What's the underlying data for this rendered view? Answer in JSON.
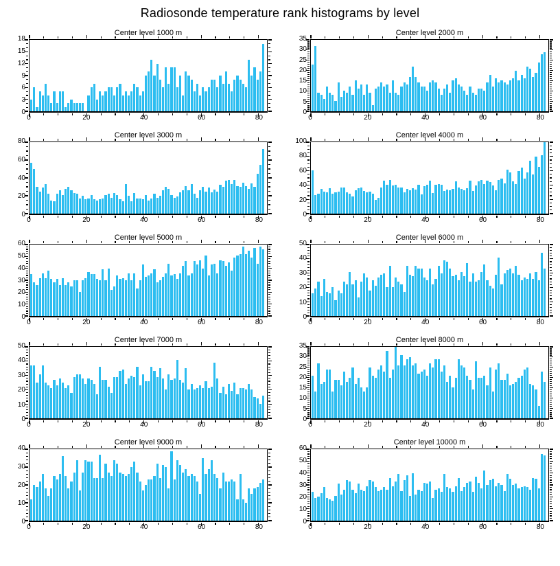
{
  "title": "Radiosonde temperature rank histograms by level",
  "colors": {
    "bar": "#2CBDF0",
    "axis": "#000000",
    "background": "#ffffff"
  },
  "chart_data": [
    {
      "type": "bar",
      "title": "Center level 1000 m",
      "ylim": [
        0,
        18
      ],
      "ytick_step": 3,
      "yminor_step": 1,
      "xlim": [
        0,
        83
      ],
      "xticks": [
        0,
        20,
        40,
        60,
        80
      ],
      "xminor_step": 5,
      "values": [
        3,
        6,
        1,
        5,
        4,
        7,
        4,
        2,
        5,
        2,
        5,
        5,
        1,
        2,
        3,
        2,
        2,
        2,
        2,
        0,
        4,
        6,
        7,
        3,
        5,
        4,
        5,
        6,
        6,
        4,
        6,
        7,
        4,
        5,
        4,
        5,
        7,
        6,
        4,
        5,
        9,
        10,
        13,
        9,
        12,
        8,
        6,
        11,
        7,
        11,
        11,
        6,
        9,
        4,
        10,
        9,
        8,
        5,
        7,
        4,
        6,
        5,
        6,
        8,
        8,
        6,
        9,
        7,
        10,
        7,
        5,
        8,
        9,
        8,
        7,
        6,
        13,
        9,
        11,
        8,
        10,
        17
      ]
    },
    {
      "type": "bar",
      "title": "Center level 2000 m",
      "ylim": [
        0,
        35
      ],
      "ytick_step": 5,
      "yminor_step": 1,
      "xlim": [
        0,
        83
      ],
      "xticks": [
        0,
        20,
        40,
        60,
        80
      ],
      "xminor_step": 5,
      "values": [
        23,
        32,
        9,
        8,
        6,
        12,
        9,
        8,
        5,
        14,
        7,
        10,
        9,
        12,
        8,
        15,
        11,
        13,
        8,
        13,
        9,
        3,
        11,
        12,
        14,
        12,
        13,
        9,
        15,
        9,
        8,
        12,
        14,
        13,
        17,
        22,
        17,
        14,
        12,
        12,
        10,
        14,
        15,
        14,
        11,
        8,
        11,
        13,
        9,
        15,
        16,
        13,
        12,
        10,
        8,
        12,
        9,
        8,
        11,
        11,
        10,
        14,
        18,
        12,
        16,
        14,
        15,
        14,
        13,
        15,
        16,
        20,
        15,
        18,
        16,
        22,
        21,
        17,
        19,
        24,
        28,
        29
      ]
    },
    {
      "type": "bar",
      "title": "Center level 3000 m",
      "ylim": [
        0,
        80
      ],
      "ytick_step": 20,
      "yminor_step": 5,
      "xlim": [
        0,
        83
      ],
      "xticks": [
        0,
        20,
        40,
        60,
        80
      ],
      "xminor_step": 5,
      "values": [
        57,
        50,
        30,
        25,
        29,
        33,
        22,
        15,
        14,
        22,
        26,
        21,
        28,
        30,
        26,
        23,
        22,
        17,
        20,
        16,
        17,
        21,
        16,
        15,
        16,
        17,
        21,
        22,
        18,
        23,
        21,
        16,
        14,
        33,
        20,
        14,
        23,
        17,
        17,
        16,
        21,
        15,
        17,
        22,
        18,
        20,
        26,
        30,
        28,
        21,
        18,
        19,
        24,
        26,
        31,
        26,
        33,
        22,
        18,
        26,
        30,
        25,
        29,
        24,
        27,
        25,
        32,
        30,
        37,
        38,
        33,
        38,
        31,
        30,
        35,
        31,
        28,
        34,
        30,
        45,
        55,
        72
      ]
    },
    {
      "type": "bar",
      "title": "Center level 4000 m",
      "ylim": [
        0,
        100
      ],
      "ytick_step": 20,
      "yminor_step": 5,
      "xlim": [
        0,
        83
      ],
      "xticks": [
        0,
        20,
        40,
        60,
        80
      ],
      "xminor_step": 5,
      "values": [
        61,
        26,
        28,
        35,
        31,
        30,
        36,
        28,
        30,
        31,
        37,
        37,
        30,
        28,
        24,
        33,
        36,
        37,
        32,
        30,
        31,
        28,
        19,
        22,
        37,
        46,
        40,
        47,
        39,
        40,
        37,
        37,
        30,
        35,
        33,
        36,
        34,
        40,
        27,
        38,
        40,
        46,
        29,
        40,
        41,
        40,
        32,
        34,
        33,
        35,
        45,
        37,
        35,
        33,
        36,
        46,
        32,
        39,
        45,
        47,
        41,
        46,
        44,
        39,
        33,
        47,
        49,
        42,
        62,
        58,
        45,
        41,
        60,
        64,
        49,
        58,
        74,
        55,
        80,
        65,
        82,
        100
      ]
    },
    {
      "type": "bar",
      "title": "Center level 5000 m",
      "ylim": [
        0,
        60
      ],
      "ytick_step": 10,
      "yminor_step": 2,
      "xlim": [
        0,
        83
      ],
      "xticks": [
        0,
        20,
        40,
        60,
        80
      ],
      "xminor_step": 5,
      "values": [
        35,
        28,
        26,
        32,
        36,
        32,
        38,
        31,
        28,
        31,
        26,
        32,
        26,
        28,
        25,
        30,
        30,
        20,
        30,
        32,
        37,
        35,
        35,
        31,
        30,
        39,
        30,
        40,
        22,
        25,
        34,
        31,
        32,
        30,
        36,
        30,
        36,
        23,
        30,
        43,
        33,
        34,
        36,
        39,
        28,
        30,
        33,
        36,
        44,
        34,
        35,
        31,
        36,
        42,
        46,
        34,
        36,
        46,
        43,
        47,
        40,
        51,
        34,
        43,
        44,
        36,
        47,
        46,
        42,
        45,
        38,
        49,
        51,
        52,
        58,
        52,
        55,
        49,
        57,
        44,
        58,
        56
      ]
    },
    {
      "type": "bar",
      "title": "Center level 6000 m",
      "ylim": [
        0,
        50
      ],
      "ytick_step": 10,
      "yminor_step": 2,
      "xlim": [
        0,
        83
      ],
      "xticks": [
        0,
        20,
        40,
        60,
        80
      ],
      "xminor_step": 5,
      "values": [
        16,
        19,
        24,
        14,
        26,
        17,
        16,
        20,
        11,
        18,
        16,
        24,
        22,
        31,
        22,
        25,
        13,
        24,
        30,
        27,
        18,
        25,
        21,
        27,
        29,
        30,
        20,
        35,
        20,
        27,
        24,
        22,
        17,
        35,
        29,
        28,
        35,
        33,
        33,
        27,
        25,
        33,
        22,
        26,
        35,
        30,
        39,
        38,
        33,
        28,
        29,
        25,
        31,
        28,
        37,
        24,
        30,
        24,
        25,
        31,
        36,
        25,
        21,
        19,
        29,
        41,
        22,
        30,
        32,
        33,
        30,
        35,
        29,
        25,
        27,
        26,
        30,
        26,
        31,
        25,
        44,
        33
      ]
    },
    {
      "type": "bar",
      "title": "Center level 7000 m",
      "ylim": [
        0,
        50
      ],
      "ytick_step": 10,
      "yminor_step": 2,
      "xlim": [
        0,
        83
      ],
      "xticks": [
        0,
        20,
        40,
        60,
        80
      ],
      "xminor_step": 5,
      "values": [
        37,
        37,
        25,
        31,
        37,
        25,
        23,
        21,
        27,
        23,
        28,
        25,
        21,
        23,
        18,
        29,
        31,
        31,
        28,
        24,
        28,
        27,
        24,
        17,
        36,
        27,
        27,
        22,
        18,
        29,
        29,
        33,
        34,
        24,
        28,
        30,
        29,
        36,
        23,
        31,
        26,
        26,
        36,
        33,
        29,
        35,
        28,
        20,
        31,
        27,
        28,
        41,
        27,
        25,
        35,
        20,
        24,
        20,
        21,
        23,
        21,
        26,
        21,
        22,
        39,
        28,
        18,
        22,
        17,
        24,
        19,
        25,
        17,
        21,
        21,
        20,
        24,
        20,
        15,
        14,
        10,
        16
      ]
    },
    {
      "type": "bar",
      "title": "Center level 8000 m",
      "ylim": [
        0,
        35
      ],
      "ytick_step": 5,
      "yminor_step": 1,
      "xlim": [
        0,
        83
      ],
      "xticks": [
        0,
        20,
        40,
        60,
        80
      ],
      "xminor_step": 5,
      "values": [
        21,
        13,
        27,
        17,
        18,
        24,
        24,
        13,
        19,
        19,
        16,
        23,
        18,
        20,
        25,
        17,
        20,
        15,
        13,
        15,
        25,
        21,
        20,
        24,
        26,
        23,
        33,
        20,
        24,
        35,
        26,
        31,
        26,
        29,
        30,
        26,
        27,
        22,
        23,
        24,
        21,
        27,
        25,
        29,
        29,
        23,
        26,
        18,
        21,
        15,
        20,
        29,
        26,
        25,
        21,
        19,
        14,
        28,
        20,
        20,
        21,
        16,
        25,
        13,
        24,
        27,
        19,
        19,
        22,
        16,
        17,
        18,
        20,
        21,
        24,
        25,
        17,
        16,
        14,
        6,
        23,
        18
      ]
    },
    {
      "type": "bar",
      "title": "Center level 9000 m",
      "ylim": [
        0,
        40
      ],
      "ytick_step": 10,
      "yminor_step": 2,
      "xlim": [
        0,
        83
      ],
      "xticks": [
        0,
        20,
        40,
        60,
        80
      ],
      "xminor_step": 5,
      "values": [
        12,
        20,
        19,
        22,
        26,
        18,
        14,
        18,
        25,
        23,
        26,
        36,
        25,
        18,
        22,
        27,
        34,
        17,
        27,
        34,
        33,
        33,
        24,
        24,
        37,
        24,
        32,
        27,
        25,
        34,
        32,
        27,
        26,
        25,
        26,
        30,
        33,
        27,
        22,
        17,
        20,
        23,
        23,
        25,
        32,
        24,
        31,
        30,
        18,
        39,
        23,
        34,
        31,
        27,
        29,
        25,
        26,
        25,
        22,
        15,
        35,
        26,
        29,
        34,
        26,
        24,
        18,
        27,
        22,
        22,
        23,
        22,
        12,
        26,
        12,
        10,
        18,
        15,
        18,
        19,
        21,
        23
      ]
    },
    {
      "type": "bar",
      "title": "Center level 10000 m",
      "ylim": [
        0,
        60
      ],
      "ytick_step": 10,
      "yminor_step": 2,
      "xlim": [
        0,
        83
      ],
      "xticks": [
        0,
        20,
        40,
        60,
        80
      ],
      "xminor_step": 5,
      "values": [
        24,
        19,
        20,
        23,
        28,
        19,
        18,
        17,
        21,
        31,
        22,
        26,
        34,
        33,
        26,
        23,
        31,
        26,
        25,
        29,
        34,
        33,
        28,
        25,
        26,
        28,
        26,
        36,
        29,
        33,
        39,
        25,
        34,
        38,
        21,
        40,
        22,
        26,
        25,
        32,
        31,
        33,
        19,
        26,
        27,
        24,
        39,
        28,
        27,
        24,
        29,
        36,
        25,
        28,
        32,
        33,
        24,
        37,
        32,
        27,
        42,
        30,
        34,
        35,
        29,
        32,
        30,
        25,
        39,
        35,
        30,
        31,
        27,
        28,
        29,
        28,
        26,
        36,
        35,
        27,
        56,
        55
      ]
    }
  ]
}
